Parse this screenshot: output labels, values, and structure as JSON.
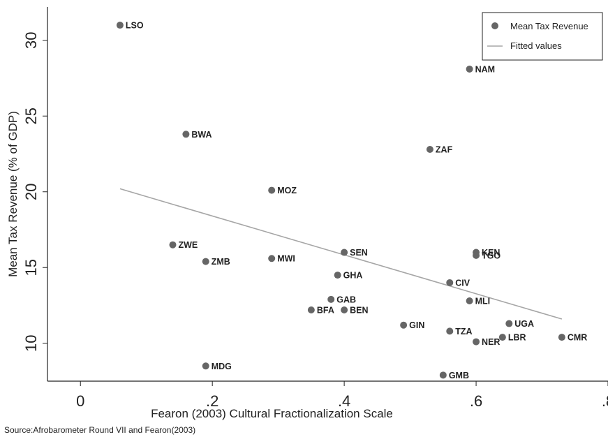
{
  "chart_data": {
    "type": "scatter",
    "xlabel": "Fearon (2003) Cultural Fractionalization Scale",
    "ylabel": "Mean Tax Revenue (% of GDP)",
    "xlim": [
      -0.05,
      0.8
    ],
    "ylim": [
      7.5,
      32.2
    ],
    "x_ticks": [
      0,
      0.2,
      0.4,
      0.6,
      0.8
    ],
    "x_tick_labels": [
      "0",
      ".2",
      ".4",
      ".6",
      ".8"
    ],
    "y_ticks": [
      10,
      15,
      20,
      25,
      30
    ],
    "y_tick_labels": [
      "10",
      "15",
      "20",
      "25",
      "30"
    ],
    "grid": false,
    "legend_position": "top-right",
    "legend": [
      "Mean Tax Revenue",
      "Fitted values"
    ],
    "point_color": "#666666",
    "line_color": "#a6a6a6",
    "points": [
      {
        "label": "LSO",
        "x": 0.06,
        "y": 31.0
      },
      {
        "label": "NAM",
        "x": 0.59,
        "y": 28.1
      },
      {
        "label": "BWA",
        "x": 0.16,
        "y": 23.8
      },
      {
        "label": "ZAF",
        "x": 0.53,
        "y": 22.8
      },
      {
        "label": "MOZ",
        "x": 0.29,
        "y": 20.1
      },
      {
        "label": "ZWE",
        "x": 0.14,
        "y": 16.5
      },
      {
        "label": "SEN",
        "x": 0.4,
        "y": 16.0
      },
      {
        "label": "KEN",
        "x": 0.6,
        "y": 16.0
      },
      {
        "label": "TGO",
        "x": 0.6,
        "y": 15.8
      },
      {
        "label": "MWI",
        "x": 0.29,
        "y": 15.6
      },
      {
        "label": "ZMB",
        "x": 0.19,
        "y": 15.4
      },
      {
        "label": "GHA",
        "x": 0.39,
        "y": 14.5
      },
      {
        "label": "CIV",
        "x": 0.56,
        "y": 14.0
      },
      {
        "label": "GAB",
        "x": 0.38,
        "y": 12.9
      },
      {
        "label": "MLI",
        "x": 0.59,
        "y": 12.8
      },
      {
        "label": "BFA",
        "x": 0.35,
        "y": 12.2
      },
      {
        "label": "BEN",
        "x": 0.4,
        "y": 12.2
      },
      {
        "label": "UGA",
        "x": 0.65,
        "y": 11.3
      },
      {
        "label": "GIN",
        "x": 0.49,
        "y": 11.2
      },
      {
        "label": "TZA",
        "x": 0.56,
        "y": 10.8
      },
      {
        "label": "LBR",
        "x": 0.64,
        "y": 10.4
      },
      {
        "label": "CMR",
        "x": 0.73,
        "y": 10.4
      },
      {
        "label": "NER",
        "x": 0.6,
        "y": 10.1
      },
      {
        "label": "MDG",
        "x": 0.19,
        "y": 8.5
      },
      {
        "label": "GMB",
        "x": 0.55,
        "y": 7.9
      }
    ],
    "fitted_line": [
      {
        "x": 0.06,
        "y": 20.2
      },
      {
        "x": 0.73,
        "y": 11.6
      }
    ]
  },
  "source_note": "Source:Afrobarometer Round VII and Fearon(2003)"
}
